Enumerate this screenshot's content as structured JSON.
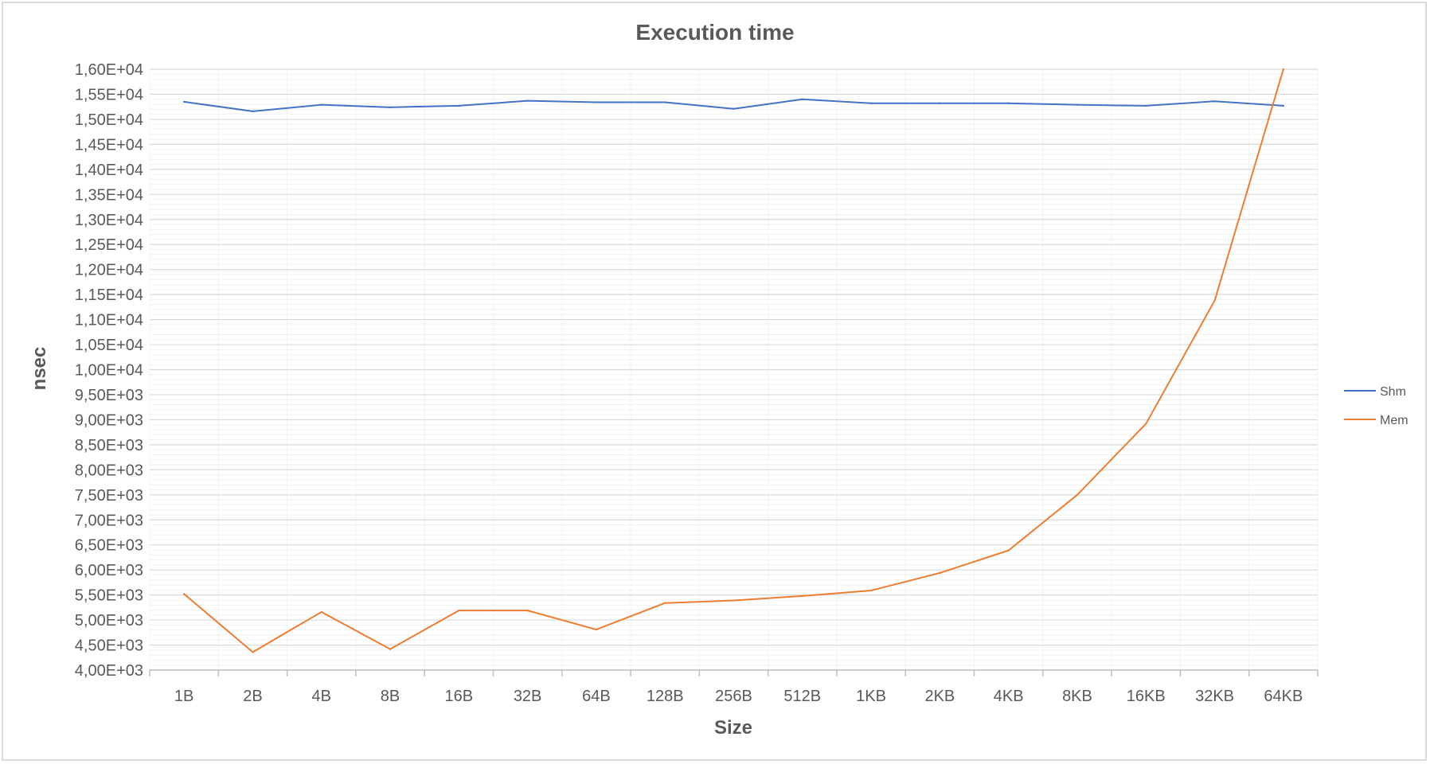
{
  "chart_data": {
    "type": "line",
    "title": "Execution time",
    "xlabel": "Size",
    "ylabel": "nsec",
    "categories": [
      "1B",
      "2B",
      "4B",
      "8B",
      "16B",
      "32B",
      "64B",
      "128B",
      "256B",
      "512B",
      "1KB",
      "2KB",
      "4KB",
      "8KB",
      "16KB",
      "32KB",
      "64KB"
    ],
    "ylim": [
      4000,
      16000
    ],
    "y_major_step": 500,
    "y_minor_step": 100,
    "y_tick_labels": [
      "4,00E+03",
      "4,50E+03",
      "5,00E+03",
      "5,50E+03",
      "6,00E+03",
      "6,50E+03",
      "7,00E+03",
      "7,50E+03",
      "8,00E+03",
      "8,50E+03",
      "9,00E+03",
      "9,50E+03",
      "1,00E+04",
      "1,05E+04",
      "1,10E+04",
      "1,15E+04",
      "1,20E+04",
      "1,25E+04",
      "1,30E+04",
      "1,35E+04",
      "1,40E+04",
      "1,45E+04",
      "1,50E+04",
      "1,55E+04",
      "1,60E+04"
    ],
    "grid": true,
    "legend_position": "right",
    "series": [
      {
        "name": "Shm",
        "color": "#4472C4",
        "values": [
          15350,
          15160,
          15290,
          15240,
          15270,
          15370,
          15340,
          15340,
          15210,
          15400,
          15320,
          15320,
          15320,
          15290,
          15270,
          15360,
          15270
        ]
      },
      {
        "name": "Mem",
        "color": "#ED7D31",
        "values": [
          5520,
          4360,
          5160,
          4420,
          5190,
          5190,
          4810,
          5340,
          5390,
          5480,
          5590,
          5940,
          6390,
          7500,
          8920,
          11380,
          16000
        ]
      }
    ]
  }
}
